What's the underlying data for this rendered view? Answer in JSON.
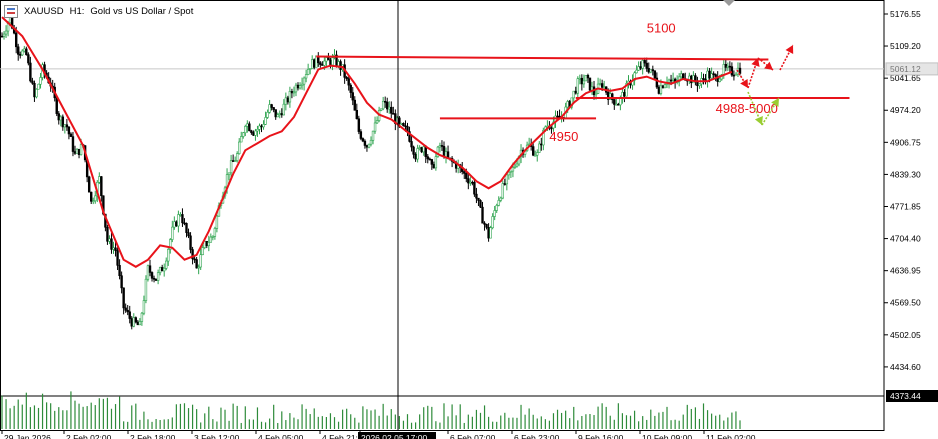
{
  "header": {
    "symbol": "XAUUSD",
    "timeframe": "H1:",
    "description": "Gold vs US Dollar / Spot"
  },
  "colors": {
    "bull": "#2ea44f",
    "bear": "#000000",
    "ma": "#e8131a",
    "annotation": "#e8131a",
    "alt_arrow": "#9acd32",
    "volume": "#2e8b3a",
    "grid": "#c8c8c8",
    "crosshair": "#000000"
  },
  "icons": [
    "chart-icon",
    "dropdown-arrow-icon"
  ],
  "chart_data": {
    "type": "candlestick",
    "ylim": [
      4373.44,
      5176.55
    ],
    "y_ticks": [
      5176.55,
      5109.2,
      5041.65,
      4974.2,
      4906.75,
      4839.3,
      4771.85,
      4704.4,
      4636.95,
      4569.5,
      4502.05,
      4434.6
    ],
    "current_price_label": "5061.12",
    "volume_panel_price_label": "4373.44",
    "x_tick_labels": [
      "29 Jan 2026",
      "2 Feb 02:00",
      "2 Feb 18:00",
      "3 Feb 12:00",
      "4 Feb 05:00",
      "4 Feb 21:00",
      "2026.02.05 17:00",
      "6 Feb 07:00",
      "6 Feb 23:00",
      "9 Feb 16:00",
      "10 Feb 09:00",
      "11 Feb 02:00"
    ],
    "crosshair_label": "2026.02.05 17:00",
    "close_path": [
      [
        0,
        5130
      ],
      [
        4,
        5170
      ],
      [
        8,
        5100
      ],
      [
        12,
        5090
      ],
      [
        16,
        5000
      ],
      [
        20,
        5060
      ],
      [
        24,
        5030
      ],
      [
        28,
        4960
      ],
      [
        32,
        4940
      ],
      [
        36,
        4880
      ],
      [
        40,
        4900
      ],
      [
        44,
        4780
      ],
      [
        48,
        4830
      ],
      [
        52,
        4700
      ],
      [
        56,
        4680
      ],
      [
        60,
        4560
      ],
      [
        64,
        4530
      ],
      [
        68,
        4520
      ],
      [
        72,
        4640
      ],
      [
        76,
        4620
      ],
      [
        80,
        4650
      ],
      [
        84,
        4720
      ],
      [
        88,
        4760
      ],
      [
        92,
        4700
      ],
      [
        96,
        4640
      ],
      [
        100,
        4690
      ],
      [
        104,
        4710
      ],
      [
        108,
        4790
      ],
      [
        112,
        4850
      ],
      [
        116,
        4880
      ],
      [
        120,
        4950
      ],
      [
        124,
        4930
      ],
      [
        128,
        4940
      ],
      [
        132,
        4980
      ],
      [
        136,
        4960
      ],
      [
        140,
        4990
      ],
      [
        144,
        5020
      ],
      [
        148,
        5040
      ],
      [
        152,
        5070
      ],
      [
        156,
        5080
      ],
      [
        160,
        5075
      ],
      [
        164,
        5080
      ],
      [
        168,
        5060
      ],
      [
        172,
        5010
      ],
      [
        176,
        4930
      ],
      [
        180,
        4900
      ],
      [
        184,
        4940
      ],
      [
        188,
        4990
      ],
      [
        192,
        4970
      ],
      [
        196,
        4940
      ],
      [
        200,
        4930
      ],
      [
        204,
        4880
      ],
      [
        208,
        4900
      ],
      [
        212,
        4850
      ],
      [
        216,
        4900
      ],
      [
        220,
        4870
      ],
      [
        224,
        4860
      ],
      [
        228,
        4840
      ],
      [
        232,
        4820
      ],
      [
        236,
        4760
      ],
      [
        240,
        4710
      ],
      [
        244,
        4780
      ],
      [
        248,
        4820
      ],
      [
        252,
        4850
      ],
      [
        256,
        4890
      ],
      [
        260,
        4900
      ],
      [
        264,
        4880
      ],
      [
        268,
        4940
      ],
      [
        272,
        4950
      ],
      [
        276,
        4960
      ],
      [
        280,
        4990
      ],
      [
        284,
        5030
      ],
      [
        288,
        5040
      ],
      [
        292,
        5010
      ],
      [
        296,
        5030
      ],
      [
        300,
        5000
      ],
      [
        304,
        4990
      ],
      [
        308,
        5020
      ],
      [
        312,
        5050
      ],
      [
        316,
        5070
      ],
      [
        320,
        5060
      ],
      [
        324,
        5020
      ],
      [
        328,
        5040
      ],
      [
        332,
        5030
      ],
      [
        336,
        5050
      ],
      [
        340,
        5040
      ],
      [
        344,
        5030
      ],
      [
        348,
        5050
      ],
      [
        352,
        5040
      ],
      [
        356,
        5060
      ],
      [
        360,
        5055
      ],
      [
        364,
        5062
      ]
    ],
    "moving_average": [
      [
        0,
        5170
      ],
      [
        10,
        5130
      ],
      [
        20,
        5060
      ],
      [
        30,
        4980
      ],
      [
        40,
        4900
      ],
      [
        50,
        4760
      ],
      [
        60,
        4660
      ],
      [
        66,
        4645
      ],
      [
        72,
        4660
      ],
      [
        78,
        4690
      ],
      [
        84,
        4685
      ],
      [
        90,
        4660
      ],
      [
        96,
        4670
      ],
      [
        102,
        4720
      ],
      [
        108,
        4780
      ],
      [
        114,
        4840
      ],
      [
        120,
        4890
      ],
      [
        126,
        4905
      ],
      [
        132,
        4920
      ],
      [
        138,
        4930
      ],
      [
        144,
        4960
      ],
      [
        150,
        5010
      ],
      [
        156,
        5060
      ],
      [
        162,
        5068
      ],
      [
        168,
        5065
      ],
      [
        174,
        5030
      ],
      [
        180,
        4990
      ],
      [
        186,
        4965
      ],
      [
        192,
        4955
      ],
      [
        198,
        4935
      ],
      [
        204,
        4915
      ],
      [
        210,
        4895
      ],
      [
        216,
        4880
      ],
      [
        222,
        4870
      ],
      [
        228,
        4850
      ],
      [
        234,
        4825
      ],
      [
        240,
        4810
      ],
      [
        246,
        4825
      ],
      [
        252,
        4860
      ],
      [
        258,
        4890
      ],
      [
        264,
        4915
      ],
      [
        270,
        4940
      ],
      [
        276,
        4960
      ],
      [
        282,
        4990
      ],
      [
        288,
        5010
      ],
      [
        294,
        5020
      ],
      [
        300,
        5015
      ],
      [
        306,
        5020
      ],
      [
        312,
        5040
      ],
      [
        318,
        5045
      ],
      [
        324,
        5035
      ],
      [
        330,
        5030
      ],
      [
        336,
        5040
      ],
      [
        342,
        5035
      ],
      [
        348,
        5035
      ],
      [
        354,
        5045
      ],
      [
        360,
        5055
      ]
    ],
    "annotations": [
      {
        "type": "hline",
        "y": 5085,
        "x_from": 155,
        "x_to": 378,
        "label": ""
      },
      {
        "type": "hline",
        "y": 5000,
        "x_from": 283,
        "x_to": 418,
        "label": ""
      },
      {
        "type": "hline",
        "y": 4957,
        "x_from": 216,
        "x_to": 293,
        "label": ""
      },
      {
        "type": "label",
        "text": "5100",
        "at": [
          318,
          5138
        ]
      },
      {
        "type": "label",
        "text": "4988-5000",
        "at": [
          352,
          4968
        ]
      },
      {
        "type": "label",
        "text": "4950",
        "at": [
          270,
          4910
        ]
      }
    ],
    "n_bars": 365,
    "volume": "vertical histogram bars in a separate lower panel"
  }
}
